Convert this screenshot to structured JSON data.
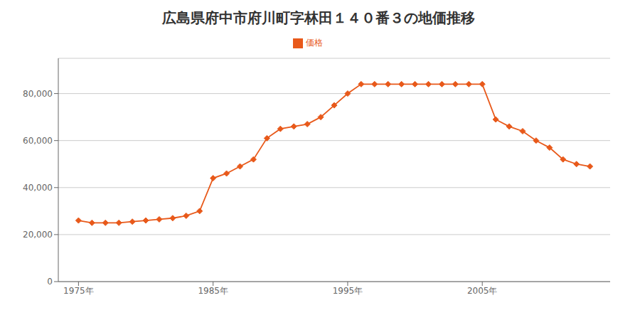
{
  "chart_data": {
    "type": "line",
    "title": "広島県府中市府川町字林田１４０番３の地価推移",
    "x": [
      1975,
      1976,
      1977,
      1978,
      1979,
      1980,
      1981,
      1982,
      1983,
      1984,
      1985,
      1986,
      1987,
      1988,
      1989,
      1990,
      1991,
      1992,
      1993,
      1994,
      1995,
      1996,
      1997,
      1998,
      1999,
      2000,
      2001,
      2002,
      2003,
      2004,
      2005,
      2006,
      2007,
      2008,
      2009,
      2010,
      2011,
      2012,
      2013
    ],
    "series": [
      {
        "name": "価格",
        "color": "#E8591A",
        "marker": "diamond",
        "values": [
          26000,
          25000,
          25000,
          25000,
          25500,
          26000,
          26500,
          27000,
          28000,
          30000,
          44000,
          46000,
          49000,
          52000,
          61000,
          65000,
          66000,
          67000,
          70000,
          75000,
          80000,
          84000,
          84000,
          84000,
          84000,
          84000,
          84000,
          84000,
          84000,
          84000,
          84000,
          69000,
          66000,
          64000,
          60000,
          57000,
          52000,
          50000,
          49000
        ]
      }
    ],
    "xlim": [
      1973.5,
      2014.5
    ],
    "xticks": [
      {
        "value": 1975,
        "label": "1975年"
      },
      {
        "value": 1985,
        "label": "1985年"
      },
      {
        "value": 1995,
        "label": "1995年"
      },
      {
        "value": 2005,
        "label": "2005年"
      }
    ],
    "ylim": [
      0,
      95000
    ],
    "yticks": [
      0,
      {
        "value": 20000,
        "label": "20,000"
      },
      {
        "value": 40000,
        "label": "40,000"
      },
      {
        "value": 60000,
        "label": "60,000"
      },
      {
        "value": 80000,
        "label": "80,000"
      }
    ],
    "grid": "y",
    "legend": "top"
  }
}
